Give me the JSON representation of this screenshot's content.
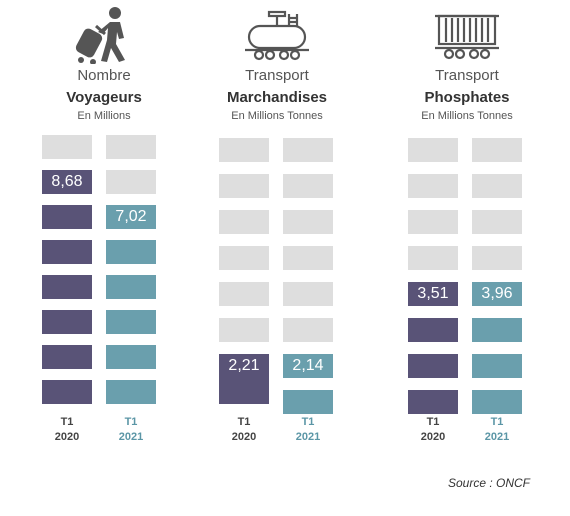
{
  "chart_data": [
    {
      "type": "bar",
      "title": "Nombre",
      "subtitle": "Voyageurs",
      "unit": "En Millions",
      "icon": "traveler-icon",
      "categories": [
        "T1\n2020",
        "T1\n2021"
      ],
      "cat_line1": [
        "T1",
        "T1"
      ],
      "cat_line2": [
        "2020",
        "2021"
      ],
      "values": [
        8.68,
        7.02
      ],
      "value_labels": [
        "8,68",
        "7,02"
      ],
      "ylim": [
        0,
        10
      ]
    },
    {
      "type": "bar",
      "title": "Transport",
      "subtitle": "Marchandises",
      "unit": "En Millions Tonnes",
      "icon": "tank-wagon-icon",
      "categories": [
        "T1\n2020",
        "T1\n2021"
      ],
      "cat_line1": [
        "T1",
        "T1"
      ],
      "cat_line2": [
        "2020",
        "2021"
      ],
      "values": [
        2.21,
        2.14
      ],
      "value_labels": [
        "2,21",
        "2,14"
      ],
      "ylim": [
        0,
        8
      ]
    },
    {
      "type": "bar",
      "title": "Transport",
      "subtitle": "Phosphates",
      "unit": "En Millions Tonnes",
      "icon": "hopper-wagon-icon",
      "categories": [
        "T1\n2020",
        "T1\n2021"
      ],
      "cat_line1": [
        "T1",
        "T1"
      ],
      "cat_line2": [
        "2020",
        "2021"
      ],
      "values": [
        3.51,
        3.96
      ],
      "value_labels": [
        "3,51",
        "3,96"
      ],
      "ylim": [
        0,
        8
      ]
    }
  ],
  "colors": {
    "year_2020": "#595377",
    "year_2021": "#6a9fad",
    "empty": "#dedede"
  },
  "source": "Source : ONCF"
}
